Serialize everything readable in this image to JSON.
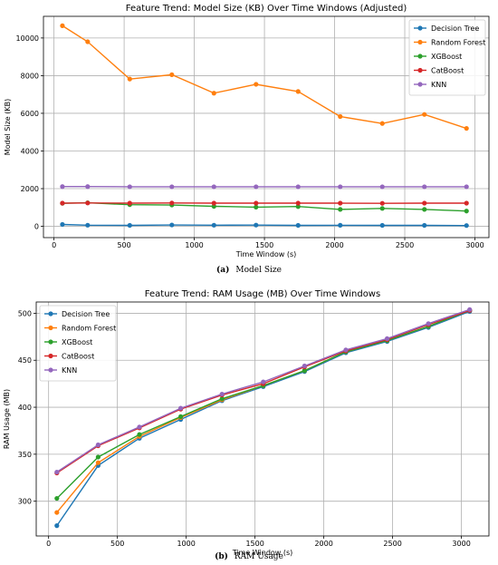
{
  "captions": [
    {
      "letter": "(a)",
      "text": "Model Size"
    },
    {
      "letter": "(b)",
      "text": "RAM Usage"
    }
  ],
  "colors": {
    "Decision Tree": "#1f77b4",
    "Random Forest": "#ff7f0e",
    "XGBoost": "#2ca02c",
    "CatBoost": "#d62728",
    "KNN": "#9467bd"
  },
  "chart_data": [
    {
      "type": "line",
      "title": "Feature Trend: Model Size (KB) Over Time Windows (Adjusted)",
      "xlabel": "Time Window (s)",
      "ylabel": "Model Size (KB)",
      "xlim": [
        -75,
        3100
      ],
      "ylim": [
        -600,
        11150
      ],
      "xticks": [
        0,
        500,
        1000,
        1500,
        2000,
        2500,
        3000
      ],
      "yticks": [
        0,
        2000,
        4000,
        6000,
        8000,
        10000
      ],
      "grid": true,
      "legend_position": "top-right",
      "x": [
        60,
        240,
        540,
        840,
        1140,
        1440,
        1740,
        2040,
        2340,
        2640,
        2940
      ],
      "series": [
        {
          "name": "Decision Tree",
          "values": [
            100,
            60,
            50,
            70,
            60,
            65,
            50,
            55,
            50,
            50,
            40
          ]
        },
        {
          "name": "Random Forest",
          "values": [
            10650,
            9800,
            7820,
            8050,
            7070,
            7540,
            7160,
            5830,
            5460,
            5940,
            5200
          ]
        },
        {
          "name": "XGBoost",
          "values": [
            1220,
            1250,
            1150,
            1130,
            1060,
            1020,
            1050,
            900,
            950,
            900,
            810
          ]
        },
        {
          "name": "CatBoost",
          "values": [
            1230,
            1240,
            1230,
            1240,
            1230,
            1230,
            1230,
            1230,
            1220,
            1230,
            1230
          ]
        },
        {
          "name": "KNN",
          "values": [
            2110,
            2110,
            2100,
            2100,
            2100,
            2100,
            2100,
            2100,
            2100,
            2100,
            2100
          ]
        }
      ]
    },
    {
      "type": "line",
      "title": "Feature Trend: RAM Usage (MB) Over Time Windows",
      "xlabel": "Time Window (s)",
      "ylabel": "RAM Usage (MB)",
      "xlim": [
        -90,
        3200
      ],
      "ylim": [
        263,
        512
      ],
      "xticks": [
        0,
        500,
        1000,
        1500,
        2000,
        2500,
        3000
      ],
      "yticks": [
        300,
        350,
        400,
        450,
        500
      ],
      "grid": true,
      "legend_position": "top-left",
      "x": [
        60,
        360,
        660,
        960,
        1260,
        1560,
        1860,
        2160,
        2460,
        2760,
        3060
      ],
      "series": [
        {
          "name": "Decision Tree",
          "values": [
            274,
            338,
            367,
            387,
            407,
            422,
            438,
            458,
            470,
            485,
            502
          ]
        },
        {
          "name": "Random Forest",
          "values": [
            288,
            341,
            369,
            389,
            408,
            423,
            439,
            459,
            471,
            486,
            503
          ]
        },
        {
          "name": "XGBoost",
          "values": [
            303,
            347,
            371,
            390,
            409,
            423,
            439,
            459,
            471,
            486,
            503
          ]
        },
        {
          "name": "CatBoost",
          "values": [
            330,
            359,
            378,
            398,
            413,
            425,
            443,
            460,
            472,
            488,
            503
          ]
        },
        {
          "name": "KNN",
          "values": [
            331,
            360,
            379,
            399,
            414,
            427,
            444,
            461,
            473,
            489,
            504
          ]
        }
      ]
    }
  ]
}
